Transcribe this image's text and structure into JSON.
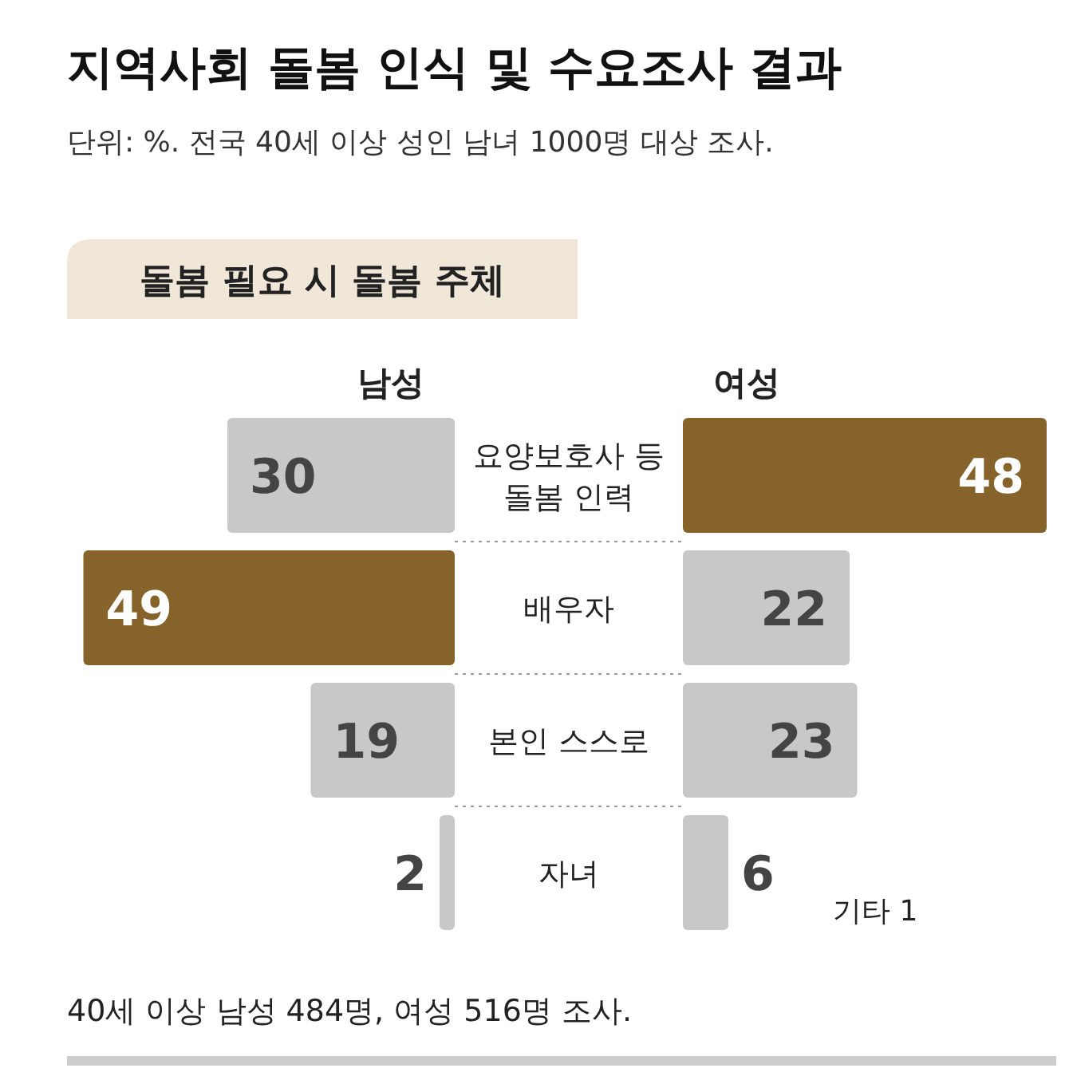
{
  "chart_data": [
    {
      "type": "bar",
      "orientation": "horizontal",
      "title": "지역사회 돌봄 인식 및 수요조사 결과",
      "subtitle": "단위: %. 전국 40세 이상 성인 남녀 1000명 대상 조사.",
      "categories": [
        "요양보호사 등 돌봄 인력",
        "배우자",
        "본인 스스로",
        "자녀"
      ],
      "series": [
        {
          "name": "남성",
          "values": [
            30,
            49,
            19,
            2
          ],
          "colors": [
            "#c8c8c8",
            "#86632b",
            "#c8c8c8",
            "#c8c8c8"
          ]
        }
      ],
      "data_labels": true,
      "annotations": [
        "돌봄 필요 시 돌봄 주체",
        "40세 이상 남성 484명, 여성 516명 조사."
      ]
    },
    {
      "type": "bar",
      "orientation": "horizontal",
      "categories": [
        null,
        null,
        null,
        null
      ],
      "series": [
        {
          "name": "여성",
          "values": [
            48,
            22,
            23,
            6
          ],
          "colors": [
            "#86632b",
            "#c8c8c8",
            "#c8c8c8",
            "#c8c8c8"
          ]
        }
      ],
      "data_labels": true,
      "annotations": [
        "기타 1"
      ]
    }
  ]
}
